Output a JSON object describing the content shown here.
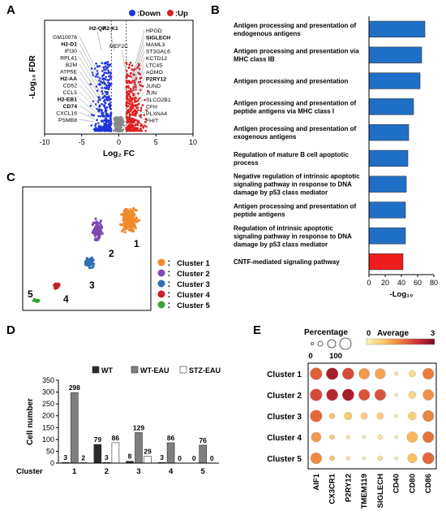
{
  "panels": {
    "A": "A",
    "B": "B",
    "C": "C",
    "D": "D",
    "E": "E"
  },
  "chart_data": [
    {
      "type": "scatter",
      "panel": "A",
      "xlabel": "Log₂ FC",
      "ylabel": "-Log₁₀ FDR",
      "xlim": [
        -10,
        10
      ],
      "xticks": [
        -10,
        -5,
        0,
        5,
        10
      ],
      "legend": [
        {
          "name": ":Down",
          "color": "#1f35e0"
        },
        {
          "name": ":Up",
          "color": "#e01f1f"
        }
      ],
      "legend_position": "top-right",
      "down_labels": [
        "GM10076",
        "H2-D1",
        "IFI30",
        "RPL41",
        "B2M",
        "ATP5E",
        "H2-AA",
        "CD52",
        "CCL5",
        "H2-EB1",
        "CD74",
        "CXCL16",
        "PSMB8"
      ],
      "down_top_labels": [
        "H2-Q7",
        "H2-K1"
      ],
      "up_labels": [
        "HPGD",
        "SIGLECH",
        "MAML3",
        "ST3GAL6",
        "KCTD12",
        "LTC4S",
        "AGMO",
        "P2RY12",
        "JUND",
        "JUN",
        "SLCO2B1",
        "CFH",
        "PLXNA4",
        "FHIT"
      ],
      "up_left_labels": [
        "MEF2C"
      ],
      "bold_labels": [
        "H2-Q7",
        "H2-K1",
        "H2-D1",
        "H2-AA",
        "H2-EB1",
        "CD74",
        "SIGLECH",
        "P2RY12"
      ]
    },
    {
      "type": "bar",
      "panel": "B",
      "orientation": "horizontal",
      "categories": [
        "Antigen processing and presentation of endogenous antigens",
        "Antigen processing and presentation via MHC class IB",
        "Antigen processing and presentation",
        "Antigen processing and presentation of peptide antigens via MHC class I",
        "Antigen processing and presentation of exogenous antigens",
        "Regulation of mature B cell apoptotic process",
        "Negative regulation of intrinsic apoptotic signaling pathway in response to DNA damage by p53 class mediator",
        "Antigen processing and presentation of peptide antigens",
        "Regulation of intrinsic apoptotic signaling pathway in response to DNA damage by p53 class mediator",
        "CNTF-mediated signaling pathway"
      ],
      "values": [
        69,
        65,
        63,
        55,
        49,
        48,
        46,
        45,
        45,
        42
      ],
      "colors": [
        "#1f6fc7",
        "#1f6fc7",
        "#1f6fc7",
        "#1f6fc7",
        "#1f6fc7",
        "#1f6fc7",
        "#1f6fc7",
        "#1f6fc7",
        "#1f6fc7",
        "#ee1c1c"
      ],
      "xlabel": "-Log₁₀",
      "xlim": [
        0,
        80
      ],
      "xticks": [
        0,
        20,
        40,
        60,
        80
      ]
    },
    {
      "type": "scatter",
      "panel": "C",
      "clusters": [
        {
          "name": "Cluster 1",
          "label": "1",
          "color": "#f08a2c"
        },
        {
          "name": "Cluster 2",
          "label": "2",
          "color": "#7e4bb0"
        },
        {
          "name": "Cluster 3",
          "label": "3",
          "color": "#2e6fb0"
        },
        {
          "name": "Cluster 4",
          "label": "4",
          "color": "#c8202a"
        },
        {
          "name": "Cluster 5",
          "label": "5",
          "color": "#3aa13a"
        }
      ],
      "legend_prefix": "：",
      "legend_position": "right"
    },
    {
      "type": "bar",
      "panel": "D",
      "ylabel": "Cell number",
      "xlabel_prefix": "Cluster",
      "categories": [
        "1",
        "2",
        "3",
        "4",
        "5"
      ],
      "ylim": [
        0,
        350
      ],
      "yticks": [
        0,
        50,
        100,
        150,
        200,
        250,
        300,
        350
      ],
      "series": [
        {
          "name": "WT",
          "color": "#2a2a2a",
          "values": [
            3,
            79,
            8,
            3,
            0
          ]
        },
        {
          "name": "WT-EAU",
          "color": "#7f7f7f",
          "values": [
            298,
            3,
            129,
            86,
            76
          ]
        },
        {
          "name": "STZ-EAU",
          "color": "#ffffff",
          "values": [
            2,
            86,
            29,
            0,
            0
          ]
        }
      ],
      "legend_position": "top"
    },
    {
      "type": "heatmap",
      "panel": "E",
      "size_legend_title": "Percentage",
      "size_legend_ticks": [
        "0",
        "100"
      ],
      "color_legend_title": "Average",
      "color_legend_ticks": [
        "0",
        "3"
      ],
      "colorscale": [
        "#fff3b8",
        "#f8c66a",
        "#ec7d3c",
        "#c8303a",
        "#7a0a1e"
      ],
      "x": [
        "AIF1",
        "CX3CR1",
        "P2RY12",
        "TMEM119",
        "SIGLECH",
        "CD40",
        "CD80",
        "CD86"
      ],
      "y": [
        "Cluster 1",
        "Cluster 2",
        "Cluster 3",
        "Cluster 4",
        "Cluster 5"
      ],
      "percentage": [
        [
          95,
          90,
          85,
          75,
          70,
          5,
          25,
          80
        ],
        [
          95,
          85,
          88,
          80,
          80,
          3,
          30,
          75
        ],
        [
          90,
          15,
          35,
          25,
          25,
          3,
          40,
          80
        ],
        [
          60,
          10,
          5,
          3,
          10,
          3,
          75,
          80
        ],
        [
          80,
          10,
          5,
          3,
          10,
          3,
          55,
          85
        ]
      ],
      "average": [
        [
          1.8,
          2.6,
          2.0,
          1.2,
          1.1,
          0.3,
          0.4,
          1.5
        ],
        [
          2.0,
          2.4,
          2.6,
          1.9,
          1.9,
          0.2,
          0.5,
          1.3
        ],
        [
          1.7,
          0.8,
          0.7,
          0.6,
          0.6,
          0.2,
          0.6,
          1.4
        ],
        [
          1.2,
          0.7,
          0.3,
          0.2,
          0.3,
          0.2,
          0.9,
          1.6
        ],
        [
          1.4,
          0.8,
          0.3,
          0.2,
          0.4,
          0.2,
          0.8,
          1.7
        ]
      ],
      "average_range": [
        0,
        3
      ],
      "percentage_range": [
        0,
        100
      ]
    }
  ]
}
